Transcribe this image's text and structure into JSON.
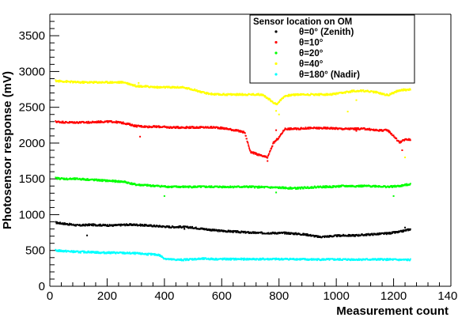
{
  "chart_data": {
    "type": "scatter",
    "xlabel": "Measurement count",
    "ylabel": "Photosensor response (mV)",
    "xlim": [
      0,
      1400
    ],
    "ylim": [
      0,
      3800
    ],
    "x_ticks": [
      0,
      200,
      400,
      600,
      800,
      1000,
      1200,
      1400
    ],
    "y_ticks": [
      0,
      500,
      1000,
      1500,
      2000,
      2500,
      3000,
      3500
    ],
    "legend": {
      "title": "Sensor location on OM",
      "placement": "top-right"
    },
    "series": [
      {
        "name": "θ=0° (Zenith)",
        "color": "#000000",
        "points": [
          [
            20,
            890
          ],
          [
            60,
            870
          ],
          [
            100,
            850
          ],
          [
            140,
            860
          ],
          [
            180,
            855
          ],
          [
            220,
            850
          ],
          [
            260,
            860
          ],
          [
            300,
            860
          ],
          [
            340,
            850
          ],
          [
            380,
            840
          ],
          [
            420,
            830
          ],
          [
            460,
            830
          ],
          [
            500,
            820
          ],
          [
            540,
            800
          ],
          [
            580,
            780
          ],
          [
            620,
            770
          ],
          [
            660,
            760
          ],
          [
            700,
            750
          ],
          [
            740,
            745
          ],
          [
            780,
            745
          ],
          [
            820,
            745
          ],
          [
            860,
            735
          ],
          [
            900,
            720
          ],
          [
            940,
            690
          ],
          [
            980,
            700
          ],
          [
            1020,
            710
          ],
          [
            1060,
            710
          ],
          [
            1100,
            720
          ],
          [
            1140,
            730
          ],
          [
            1180,
            740
          ],
          [
            1220,
            760
          ],
          [
            1260,
            800
          ]
        ],
        "outliers": [
          [
            130,
            710
          ],
          [
            470,
            800
          ],
          [
            1210,
            760
          ],
          [
            1240,
            820
          ]
        ]
      },
      {
        "name": "θ=10°",
        "color": "#ff0000",
        "points": [
          [
            20,
            2300
          ],
          [
            60,
            2290
          ],
          [
            100,
            2290
          ],
          [
            140,
            2290
          ],
          [
            180,
            2300
          ],
          [
            220,
            2300
          ],
          [
            260,
            2280
          ],
          [
            300,
            2240
          ],
          [
            340,
            2230
          ],
          [
            380,
            2230
          ],
          [
            420,
            2220
          ],
          [
            460,
            2220
          ],
          [
            500,
            2220
          ],
          [
            540,
            2220
          ],
          [
            580,
            2220
          ],
          [
            620,
            2200
          ],
          [
            660,
            2170
          ],
          [
            680,
            2150
          ],
          [
            700,
            1880
          ],
          [
            720,
            1850
          ],
          [
            740,
            1820
          ],
          [
            760,
            1800
          ],
          [
            780,
            2000
          ],
          [
            800,
            2080
          ],
          [
            820,
            2200
          ],
          [
            860,
            2200
          ],
          [
            900,
            2210
          ],
          [
            940,
            2210
          ],
          [
            980,
            2210
          ],
          [
            1020,
            2200
          ],
          [
            1060,
            2200
          ],
          [
            1100,
            2200
          ],
          [
            1140,
            2180
          ],
          [
            1180,
            2180
          ],
          [
            1200,
            2100
          ],
          [
            1220,
            2010
          ],
          [
            1240,
            2050
          ],
          [
            1260,
            2050
          ]
        ],
        "outliers": [
          [
            315,
            2090
          ],
          [
            760,
            1750
          ],
          [
            790,
            2180
          ],
          [
            1070,
            2170
          ],
          [
            1230,
            1900
          ]
        ]
      },
      {
        "name": "θ=20°",
        "color": "#00ff00",
        "points": [
          [
            20,
            1510
          ],
          [
            60,
            1500
          ],
          [
            100,
            1500
          ],
          [
            140,
            1490
          ],
          [
            180,
            1480
          ],
          [
            220,
            1470
          ],
          [
            260,
            1460
          ],
          [
            300,
            1420
          ],
          [
            340,
            1410
          ],
          [
            380,
            1400
          ],
          [
            420,
            1390
          ],
          [
            460,
            1390
          ],
          [
            500,
            1390
          ],
          [
            540,
            1390
          ],
          [
            580,
            1390
          ],
          [
            620,
            1390
          ],
          [
            660,
            1390
          ],
          [
            700,
            1390
          ],
          [
            740,
            1385
          ],
          [
            780,
            1380
          ],
          [
            820,
            1375
          ],
          [
            860,
            1370
          ],
          [
            900,
            1380
          ],
          [
            940,
            1390
          ],
          [
            980,
            1390
          ],
          [
            1020,
            1400
          ],
          [
            1060,
            1400
          ],
          [
            1100,
            1400
          ],
          [
            1140,
            1400
          ],
          [
            1180,
            1390
          ],
          [
            1220,
            1400
          ],
          [
            1260,
            1430
          ]
        ],
        "outliers": [
          [
            400,
            1260
          ],
          [
            790,
            1310
          ],
          [
            1200,
            1260
          ]
        ]
      },
      {
        "name": "θ=40°",
        "color": "#ffff00",
        "points": [
          [
            20,
            2870
          ],
          [
            60,
            2860
          ],
          [
            100,
            2850
          ],
          [
            140,
            2850
          ],
          [
            180,
            2850
          ],
          [
            220,
            2850
          ],
          [
            260,
            2850
          ],
          [
            300,
            2800
          ],
          [
            340,
            2790
          ],
          [
            380,
            2780
          ],
          [
            420,
            2780
          ],
          [
            460,
            2780
          ],
          [
            500,
            2750
          ],
          [
            540,
            2700
          ],
          [
            580,
            2680
          ],
          [
            620,
            2680
          ],
          [
            660,
            2680
          ],
          [
            700,
            2680
          ],
          [
            740,
            2680
          ],
          [
            770,
            2600
          ],
          [
            790,
            2540
          ],
          [
            820,
            2660
          ],
          [
            860,
            2680
          ],
          [
            900,
            2680
          ],
          [
            940,
            2680
          ],
          [
            980,
            2680
          ],
          [
            1020,
            2700
          ],
          [
            1060,
            2730
          ],
          [
            1100,
            2730
          ],
          [
            1140,
            2710
          ],
          [
            1180,
            2670
          ],
          [
            1220,
            2740
          ],
          [
            1260,
            2750
          ]
        ],
        "outliers": [
          [
            790,
            2450
          ],
          [
            800,
            2400
          ],
          [
            1040,
            2440
          ],
          [
            1070,
            2600
          ],
          [
            1240,
            1800
          ],
          [
            310,
            2840
          ]
        ]
      },
      {
        "name": "θ=180° (Nadir)",
        "color": "#00ffff",
        "points": [
          [
            20,
            500
          ],
          [
            60,
            490
          ],
          [
            100,
            480
          ],
          [
            140,
            480
          ],
          [
            180,
            470
          ],
          [
            220,
            470
          ],
          [
            260,
            465
          ],
          [
            300,
            460
          ],
          [
            340,
            450
          ],
          [
            380,
            440
          ],
          [
            400,
            390
          ],
          [
            420,
            375
          ],
          [
            460,
            370
          ],
          [
            500,
            380
          ],
          [
            540,
            385
          ],
          [
            580,
            380
          ],
          [
            620,
            380
          ],
          [
            660,
            380
          ],
          [
            700,
            380
          ],
          [
            740,
            380
          ],
          [
            780,
            380
          ],
          [
            820,
            380
          ],
          [
            860,
            380
          ],
          [
            900,
            375
          ],
          [
            940,
            375
          ],
          [
            980,
            375
          ],
          [
            1020,
            375
          ],
          [
            1060,
            375
          ],
          [
            1100,
            375
          ],
          [
            1140,
            375
          ],
          [
            1180,
            375
          ],
          [
            1220,
            370
          ],
          [
            1260,
            370
          ]
        ],
        "outliers": []
      }
    ]
  }
}
